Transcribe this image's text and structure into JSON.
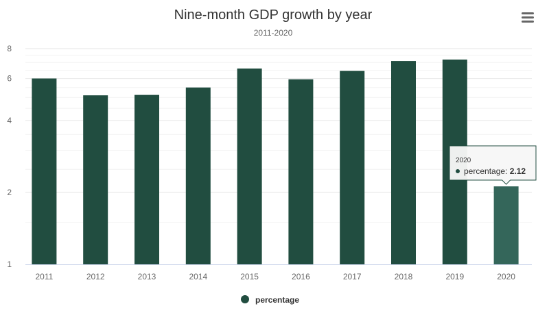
{
  "colors": {
    "bar": "#214d40",
    "bar_hover": "#34665a",
    "grid_major": "#e6e6e6",
    "grid_minor": "#f2f2f2",
    "axis_line": "#ccd6eb",
    "menu_icon": "#666666"
  },
  "menu": {
    "icon": "hamburger-menu-icon"
  },
  "chart_data": {
    "type": "bar",
    "title": "Nine-month GDP growth by year",
    "subtitle": "2011-2020",
    "categories": [
      "2011",
      "2012",
      "2013",
      "2014",
      "2015",
      "2016",
      "2017",
      "2018",
      "2019",
      "2020"
    ],
    "series": [
      {
        "name": "percentage",
        "values": [
          6.0,
          5.1,
          5.12,
          5.5,
          6.6,
          5.95,
          6.45,
          7.1,
          7.2,
          2.12
        ]
      }
    ],
    "yaxis": {
      "scale": "log",
      "ticks": [
        "1",
        "2",
        "4",
        "6",
        "8"
      ],
      "range": [
        1,
        8
      ]
    },
    "grid": true,
    "legend": {
      "position": "bottom-center"
    },
    "tooltip": {
      "category": "2020",
      "series": "percentage",
      "value": "2.12"
    }
  }
}
